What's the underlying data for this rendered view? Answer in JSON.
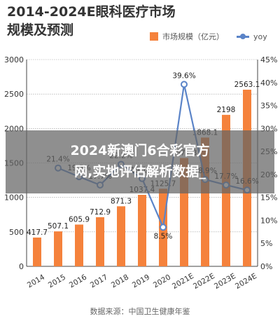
{
  "title_line1": "2014-2024E眼科医疗市场",
  "title_line2": "规模及预测",
  "legend": {
    "bar_label": "市场规模（亿元）",
    "line_label": "yoy"
  },
  "source": "数据来源：中国卫生健康年鉴",
  "overlay": {
    "line1": "2024新澳门6合彩官方",
    "line2": "网,实地评估解析数据_"
  },
  "colors": {
    "bar": "#F5823C",
    "line": "#5B84C8",
    "axis": "#444444",
    "grid": "#999999"
  },
  "chart_data": {
    "type": "bar",
    "categories": [
      "2014",
      "2015",
      "2016",
      "2017",
      "2018",
      "2019",
      "2020",
      "2021E",
      "2022E",
      "2023E",
      "2024E"
    ],
    "series": [
      {
        "name": "市场规模（亿元）",
        "axis": "left",
        "type": "bar",
        "values": [
          417.7,
          507.1,
          605.9,
          712.9,
          871.3,
          1037.4,
          1125.7,
          1571.8,
          1868.1,
          2198,
          2563.1
        ],
        "labels": [
          "417.7",
          "507.1",
          "605.9",
          "712.9",
          "871.3",
          "1037.4",
          "1125.7",
          "1571.8",
          "1868.1",
          "2198",
          "2563.1"
        ]
      },
      {
        "name": "yoy",
        "axis": "right",
        "type": "line",
        "values": [
          null,
          21.4,
          19.5,
          17.7,
          22.2,
          19.1,
          8.5,
          39.6,
          18.9,
          17.7,
          16.6
        ],
        "labels": [
          "",
          "21.4%",
          "19.5%",
          "17.7%",
          "22.2%",
          "19.1%",
          "8.5%",
          "39.6%",
          "18.9%",
          "17.7%",
          "16.6%"
        ]
      }
    ],
    "y_left": {
      "lim": [
        0,
        3000
      ],
      "ticks": [
        "0",
        "500",
        "1000",
        "1500",
        "2000",
        "2500",
        "3000"
      ]
    },
    "y_right": {
      "lim": [
        0,
        45
      ],
      "ticks": [
        "0%",
        "5%",
        "10%",
        "15%",
        "20%",
        "25%",
        "30%",
        "35%",
        "40%",
        "45%"
      ]
    },
    "grid": true
  }
}
